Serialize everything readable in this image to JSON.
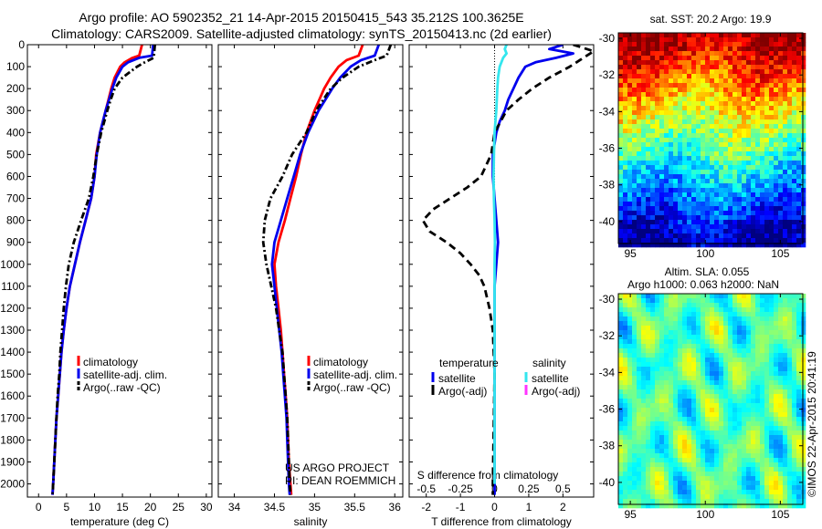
{
  "header": {
    "line1": "Argo profile: AO 5902352_21 14-Apr-2015 20150415_543 35.212S 100.3625E",
    "line2": "Climatology: CARS2009. Satellite-adjusted climatology: synTS_20150413.nc (2d earlier)"
  },
  "credits": {
    "project": "US ARGO PROJECT",
    "pi": "PI: DEAN ROEMMICH",
    "imos": "©IMOS 22-Apr-2015 20:41:19"
  },
  "colors": {
    "climatology": "#ff0000",
    "satellite": "#0000ee",
    "argo": "#000000",
    "satellite_salinity": "#33e6ee",
    "argo_salinity": "#ff33ff"
  },
  "chart_data": [
    {
      "type": "line",
      "id": "temperature",
      "xlabel": "temperature (deg C)",
      "xlim": [
        -2,
        31
      ],
      "xticks": [
        0,
        5,
        10,
        15,
        20,
        25,
        30
      ],
      "ylim": [
        0,
        2060
      ],
      "yticks": [
        0,
        100,
        200,
        300,
        400,
        500,
        600,
        700,
        800,
        900,
        1000,
        1100,
        1200,
        1300,
        1400,
        1500,
        1600,
        1700,
        1800,
        1900,
        2000
      ],
      "legend": [
        "climatology",
        "satellite-adj. clim.",
        "Argo(..raw -QC)"
      ],
      "series": [
        {
          "name": "climatology",
          "style": "solid",
          "color": "#ff0000",
          "depth": [
            0,
            50,
            60,
            80,
            100,
            150,
            200,
            250,
            300,
            400,
            500,
            600,
            700,
            800,
            900,
            1000,
            1100,
            1200,
            1300,
            1400,
            1500,
            1600,
            1700,
            1800,
            1900,
            2000,
            2050
          ],
          "value": [
            18.5,
            18.0,
            16.8,
            15.4,
            14.6,
            13.6,
            13.0,
            12.5,
            12.0,
            11.0,
            10.3,
            10.0,
            9.4,
            8.4,
            7.4,
            6.5,
            5.6,
            5.0,
            4.5,
            4.1,
            3.8,
            3.5,
            3.2,
            3.0,
            2.8,
            2.6,
            2.5
          ]
        },
        {
          "name": "satellite-adj. clim.",
          "style": "solid",
          "color": "#0000ee",
          "depth": [
            0,
            50,
            60,
            80,
            100,
            150,
            200,
            250,
            300,
            400,
            500,
            600,
            700,
            800,
            900,
            1000,
            1100,
            1200,
            1300,
            1400,
            1500,
            1600,
            1700,
            1800,
            1900,
            2000,
            2050
          ],
          "value": [
            20.5,
            20.3,
            18.0,
            16.0,
            15.0,
            13.9,
            13.2,
            12.6,
            12.0,
            11.0,
            10.4,
            10.0,
            9.4,
            8.4,
            7.4,
            6.5,
            5.6,
            5.0,
            4.5,
            4.1,
            3.8,
            3.5,
            3.2,
            3.0,
            2.8,
            2.6,
            2.5
          ]
        },
        {
          "name": "Argo(..raw -QC)",
          "style": "dashdot",
          "color": "#000000",
          "depth": [
            0,
            60,
            80,
            100,
            150,
            200,
            250,
            300,
            400,
            500,
            600,
            700,
            800,
            900,
            1000,
            1100,
            1200,
            1300,
            1400,
            1500,
            1600,
            1700,
            1800,
            1900,
            2000,
            2050
          ],
          "value": [
            20.8,
            20.6,
            19.0,
            17.6,
            15.0,
            13.6,
            12.9,
            12.3,
            11.2,
            10.4,
            9.8,
            9.0,
            7.6,
            6.3,
            5.4,
            4.9,
            4.5,
            4.2,
            3.9,
            3.7,
            3.4,
            3.2,
            3.0,
            2.8,
            2.6,
            2.5
          ]
        }
      ]
    },
    {
      "type": "line",
      "id": "salinity",
      "xlabel": "salinity",
      "xlim": [
        33.8,
        36.1
      ],
      "xticks": [
        34,
        34.5,
        35,
        35.5,
        36
      ],
      "ylim": [
        0,
        2060
      ],
      "legend": [
        "climatology",
        "satellite-adj. clim.",
        "Argo(..raw -QC)"
      ],
      "series": [
        {
          "name": "climatology",
          "style": "solid",
          "color": "#ff0000",
          "depth": [
            0,
            50,
            70,
            100,
            150,
            200,
            300,
            400,
            500,
            600,
            700,
            800,
            900,
            1000,
            1100,
            1200,
            1300,
            1400,
            1500,
            1600,
            1700,
            1800,
            1900,
            2000,
            2050
          ],
          "value": [
            35.6,
            35.55,
            35.4,
            35.3,
            35.2,
            35.12,
            35.0,
            34.9,
            34.83,
            34.77,
            34.7,
            34.63,
            34.55,
            34.5,
            34.52,
            34.55,
            34.58,
            34.6,
            34.62,
            34.64,
            34.66,
            34.67,
            34.68,
            34.7,
            34.71
          ]
        },
        {
          "name": "satellite-adj. clim.",
          "style": "solid",
          "color": "#0000ee",
          "depth": [
            0,
            50,
            70,
            100,
            150,
            200,
            300,
            400,
            500,
            600,
            700,
            800,
            900,
            1000,
            1100,
            1200,
            1300,
            1400,
            1500,
            1600,
            1700,
            1800,
            1900,
            2000,
            2050
          ],
          "value": [
            35.8,
            35.75,
            35.58,
            35.45,
            35.32,
            35.22,
            35.05,
            34.92,
            34.82,
            34.74,
            34.66,
            34.58,
            34.5,
            34.47,
            34.5,
            34.53,
            34.56,
            34.59,
            34.61,
            34.63,
            34.65,
            34.66,
            34.67,
            34.68,
            34.69
          ]
        },
        {
          "name": "Argo(..raw -QC)",
          "style": "dashdot",
          "color": "#000000",
          "depth": [
            0,
            50,
            70,
            100,
            150,
            200,
            300,
            400,
            500,
            600,
            700,
            800,
            900,
            1000,
            1100,
            1200,
            1300,
            1400,
            1500,
            1600,
            1700,
            1800,
            1900,
            2000,
            2050
          ],
          "value": [
            35.95,
            35.9,
            35.75,
            35.55,
            35.35,
            35.2,
            35.02,
            34.9,
            34.72,
            34.6,
            34.45,
            34.38,
            34.36,
            34.4,
            34.46,
            34.52,
            34.56,
            34.6,
            34.62,
            34.64,
            34.66,
            34.67,
            34.68,
            34.69,
            34.7
          ]
        }
      ]
    },
    {
      "type": "line",
      "id": "difference",
      "xlabel": "T difference from climatology",
      "xlabel_top": "S difference from climatology",
      "xlim": [
        -2.5,
        2.9
      ],
      "xticks": [
        -2,
        -1,
        0,
        1,
        2
      ],
      "xticks_s": [
        -0.5,
        -0.25,
        0,
        0.25,
        0.5
      ],
      "xticklabels_s": [
        "-0.5",
        "-0.25",
        "0",
        "0.25",
        "0.5"
      ],
      "ylim": [
        0,
        2060
      ],
      "legend": {
        "temperature": [
          "satellite",
          "Argo(-adj)"
        ],
        "salinity": [
          "satellite",
          "Argo(-adj)"
        ],
        "temperature_title": "temperature",
        "salinity_title": "salinity"
      },
      "series": [
        {
          "name": "temperature satellite",
          "style": "solid",
          "color": "#0000ee",
          "depth": [
            0,
            20,
            40,
            60,
            80,
            100,
            150,
            200,
            250,
            300,
            350,
            400,
            500,
            600,
            700,
            800,
            900,
            1000,
            1100,
            1200,
            1500,
            2000,
            2050
          ],
          "value": [
            2.0,
            1.6,
            2.3,
            1.8,
            1.2,
            0.9,
            0.7,
            0.55,
            0.4,
            0.3,
            0.15,
            0.05,
            -0.05,
            -0.05,
            0.0,
            0.05,
            0.1,
            0.05,
            0.0,
            0.0,
            0.0,
            0.0,
            0.0
          ]
        },
        {
          "name": "temperature Argo(-adj)",
          "style": "dashed",
          "color": "#000000",
          "depth": [
            0,
            30,
            60,
            100,
            150,
            200,
            250,
            300,
            400,
            500,
            600,
            650,
            700,
            750,
            800,
            850,
            900,
            950,
            1000,
            1050,
            1100,
            1200,
            1300,
            1500,
            2000,
            2050
          ],
          "value": [
            2.3,
            2.9,
            2.6,
            2.2,
            1.6,
            1.1,
            0.7,
            0.35,
            0.0,
            -0.1,
            -0.4,
            -0.8,
            -1.3,
            -1.8,
            -2.1,
            -1.9,
            -1.4,
            -1.0,
            -0.7,
            -0.45,
            -0.3,
            -0.15,
            -0.05,
            0.0,
            -0.05,
            -0.05
          ]
        },
        {
          "name": "salinity satellite",
          "style": "solid",
          "color": "#33e6ee",
          "depth": [
            0,
            20,
            40,
            60,
            80,
            100,
            150,
            200,
            300,
            400,
            500,
            600,
            700,
            800,
            900,
            1000,
            1200,
            2000
          ],
          "value": [
            0.35,
            0.3,
            0.35,
            0.25,
            0.2,
            0.15,
            0.1,
            0.08,
            0.05,
            0.0,
            -0.02,
            -0.03,
            -0.02,
            0.0,
            0.01,
            0.0,
            0.0,
            0.0
          ]
        }
      ]
    },
    {
      "type": "heatmap",
      "id": "sst_map",
      "title": "sat. SST: 20.2  Argo: 19.9",
      "xticks": [
        95,
        100,
        105
      ],
      "yticks": [
        -30,
        -32,
        -34,
        -36,
        -38,
        -40
      ],
      "xlim": [
        94.2,
        106.5
      ],
      "ylim": [
        -41.2,
        -29.7
      ]
    },
    {
      "type": "heatmap",
      "id": "sla_map",
      "title_line1": "Altim. SLA: 0.055",
      "title_line2": "Argo h1000: 0.063  h2000: NaN",
      "xticks": [
        95,
        100,
        105
      ],
      "yticks": [
        -30,
        -32,
        -34,
        -36,
        -38,
        -40
      ],
      "xlim": [
        94.2,
        106.5
      ],
      "ylim": [
        -41.2,
        -29.7
      ]
    }
  ]
}
